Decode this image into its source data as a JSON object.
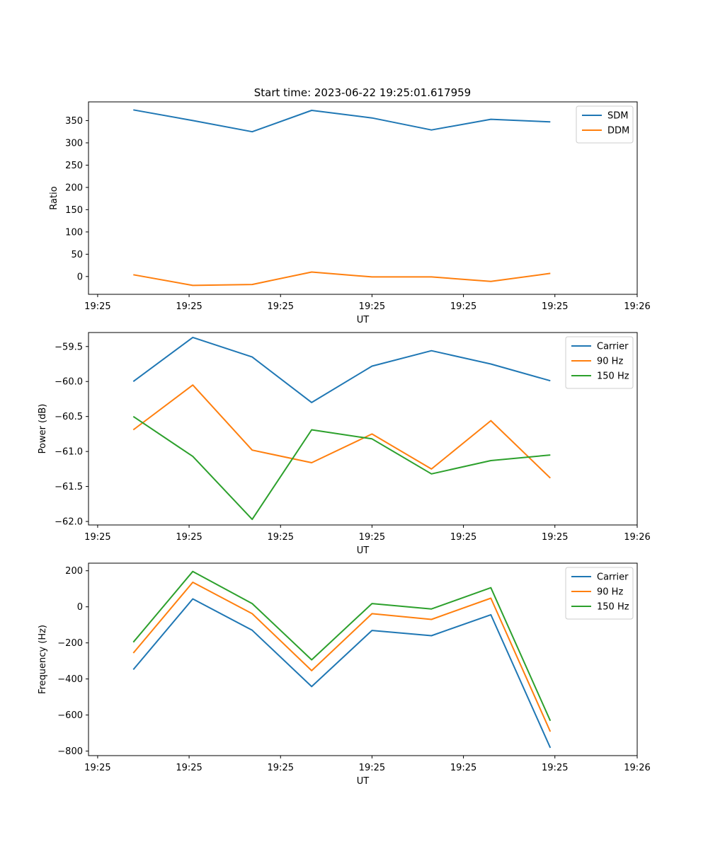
{
  "figure_title": "Start time: 2023-06-22 19:25:01.617959",
  "chart_data": [
    {
      "type": "line",
      "title": "Start time: 2023-06-22 19:25:01.617959",
      "xlabel": "UT",
      "ylabel": "Ratio",
      "x_tick_labels": [
        "19:25",
        "19:25",
        "19:25",
        "19:25",
        "19:25",
        "19:25",
        "19:26"
      ],
      "xlim": [
        0,
        6
      ],
      "ylim": [
        -40,
        392
      ],
      "y_ticks": [
        0,
        50,
        100,
        150,
        200,
        250,
        300,
        350
      ],
      "y_tick_labels": [
        "0",
        "50",
        "100",
        "150",
        "200",
        "250",
        "300",
        "350"
      ],
      "x": [
        0.49,
        1.14,
        1.79,
        2.44,
        3.1,
        3.75,
        4.4,
        5.05
      ],
      "legend_position": "top-right",
      "grid": false,
      "series": [
        {
          "name": "SDM",
          "color": "#1f77b4",
          "values": [
            374,
            350,
            325,
            373,
            356,
            329,
            353,
            347
          ]
        },
        {
          "name": "DDM",
          "color": "#ff7f0e",
          "values": [
            4,
            -20,
            -18,
            10,
            -1,
            -1,
            -11,
            7
          ]
        }
      ]
    },
    {
      "type": "line",
      "xlabel": "UT",
      "ylabel": "Power (dB)",
      "x_tick_labels": [
        "19:25",
        "19:25",
        "19:25",
        "19:25",
        "19:25",
        "19:25",
        "19:26"
      ],
      "xlim": [
        0,
        6
      ],
      "ylim": [
        -62.05,
        -59.3
      ],
      "y_ticks": [
        -62.0,
        -61.5,
        -61.0,
        -60.5,
        -60.0,
        -59.5
      ],
      "y_tick_labels": [
        "−62.0",
        "−61.5",
        "−61.0",
        "−60.5",
        "−60.0",
        "−59.5"
      ],
      "x": [
        0.49,
        1.14,
        1.79,
        2.44,
        3.1,
        3.75,
        4.4,
        5.05
      ],
      "legend_position": "top-right",
      "grid": false,
      "series": [
        {
          "name": "Carrier",
          "color": "#1f77b4",
          "values": [
            -60.0,
            -59.37,
            -59.65,
            -60.3,
            -59.78,
            -59.56,
            -59.75,
            -59.99
          ]
        },
        {
          "name": "90 Hz",
          "color": "#ff7f0e",
          "values": [
            -60.69,
            -60.05,
            -60.98,
            -61.16,
            -60.75,
            -61.25,
            -60.56,
            -61.38
          ]
        },
        {
          "name": "150 Hz",
          "color": "#2ca02c",
          "values": [
            -60.5,
            -61.07,
            -61.97,
            -60.69,
            -60.82,
            -61.32,
            -61.13,
            -61.05
          ]
        }
      ]
    },
    {
      "type": "line",
      "xlabel": "UT",
      "ylabel": "Frequency (Hz)",
      "x_tick_labels": [
        "19:25",
        "19:25",
        "19:25",
        "19:25",
        "19:25",
        "19:25",
        "19:26"
      ],
      "xlim": [
        0,
        6
      ],
      "ylim": [
        -825,
        242
      ],
      "y_ticks": [
        -800,
        -600,
        -400,
        -200,
        0,
        200
      ],
      "y_tick_labels": [
        "−800",
        "−600",
        "−400",
        "−200",
        "0",
        "200"
      ],
      "x": [
        0.49,
        1.14,
        1.79,
        2.44,
        3.1,
        3.75,
        4.4,
        5.05
      ],
      "legend_position": "top-right",
      "grid": false,
      "series": [
        {
          "name": "Carrier",
          "color": "#1f77b4",
          "values": [
            -348,
            44,
            -130,
            -442,
            -131,
            -160,
            -44,
            -782
          ]
        },
        {
          "name": "90 Hz",
          "color": "#ff7f0e",
          "values": [
            -256,
            136,
            -38,
            -354,
            -38,
            -70,
            48,
            -692
          ]
        },
        {
          "name": "150 Hz",
          "color": "#2ca02c",
          "values": [
            -196,
            196,
            18,
            -294,
            18,
            -12,
            106,
            -632
          ]
        }
      ]
    }
  ]
}
